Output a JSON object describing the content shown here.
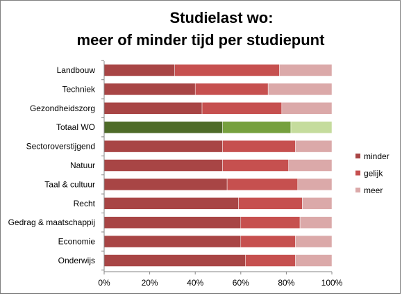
{
  "chart_data": {
    "type": "bar",
    "orientation": "horizontal",
    "stacked": true,
    "percent": true,
    "title": "Studielast wo:",
    "subtitle": "meer of minder tijd per studiepunt",
    "categories": [
      "Landbouw",
      "Techniek",
      "Gezondheidszorg",
      "Totaal WO",
      "Sectoroverstijgend",
      "Natuur",
      "Taal & cultuur",
      "Recht",
      "Gedrag & maatschappij",
      "Economie",
      "Onderwijs"
    ],
    "series": [
      {
        "name": "minder",
        "color": "#a84545",
        "values": [
          31,
          40,
          43,
          52,
          52,
          52,
          54,
          59,
          60,
          60,
          62
        ]
      },
      {
        "name": "gelijk",
        "color": "#c6504f",
        "values": [
          46,
          32,
          35,
          30,
          32,
          29,
          31,
          28,
          26,
          24,
          22
        ]
      },
      {
        "name": "meer",
        "color": "#dba9a9",
        "values": [
          23,
          28,
          22,
          18,
          16,
          19,
          15,
          13,
          14,
          16,
          16
        ]
      }
    ],
    "highlight": {
      "category": "Totaal WO",
      "colors": [
        "#4e6b28",
        "#76a03e",
        "#c5dc9d"
      ]
    },
    "xticks": [
      "0%",
      "20%",
      "40%",
      "60%",
      "80%",
      "100%"
    ],
    "xlim": [
      0,
      100
    ],
    "legend_position": "right",
    "grid": false
  }
}
